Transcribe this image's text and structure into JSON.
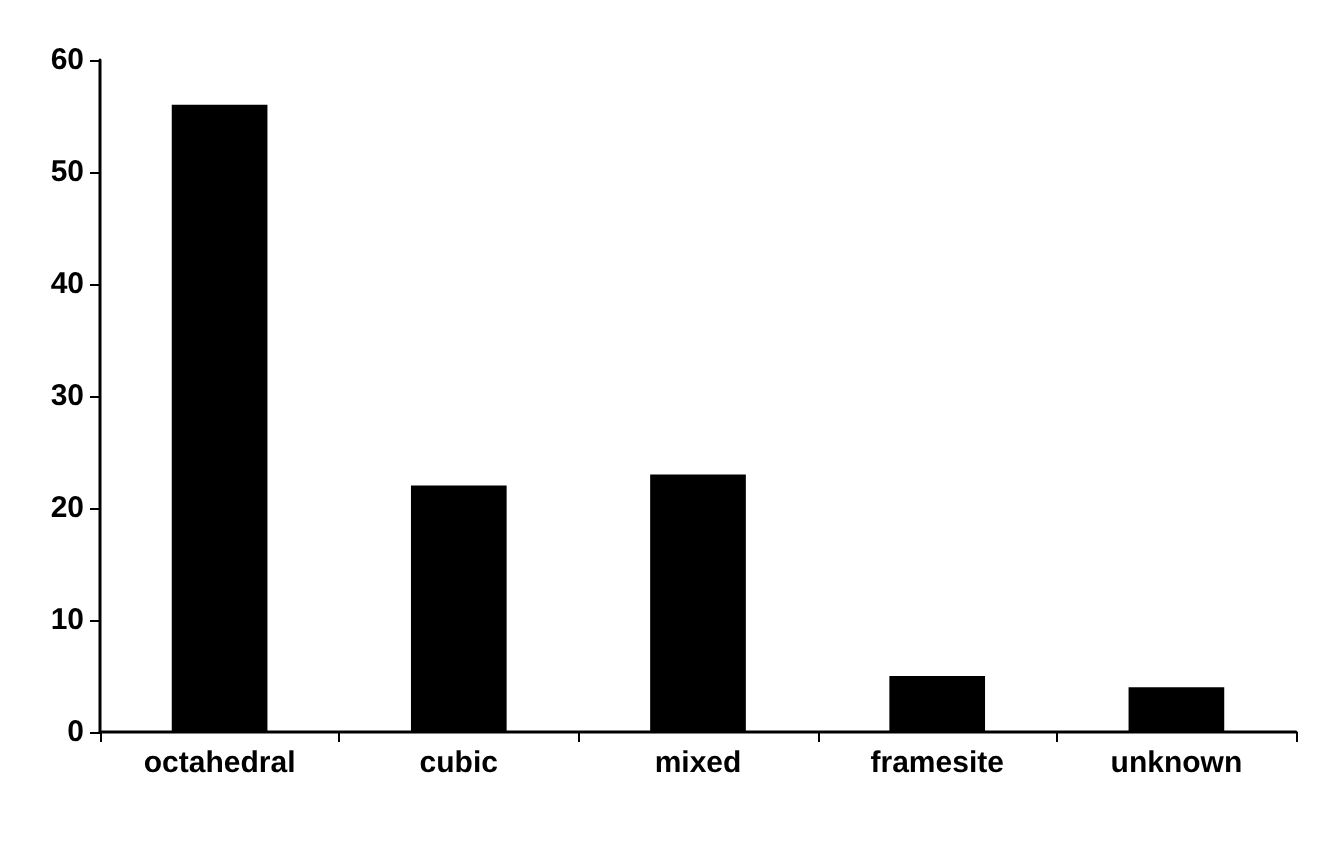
{
  "chart_data": {
    "type": "bar",
    "categories": [
      "octahedral",
      "cubic",
      "mixed",
      "framesite",
      "unknown"
    ],
    "values": [
      56,
      22,
      23,
      5,
      4
    ],
    "color": "#000000",
    "ylim": [
      0,
      60
    ],
    "yticks": [
      0,
      10,
      20,
      30,
      40,
      50,
      60
    ],
    "grid": false
  }
}
